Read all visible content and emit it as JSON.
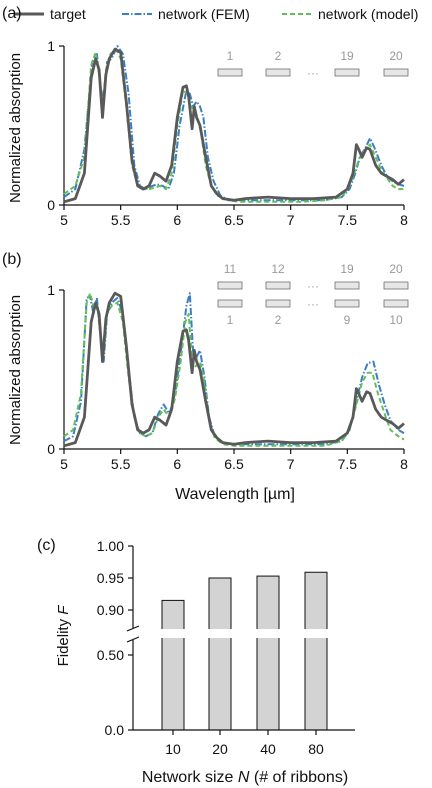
{
  "colors": {
    "target": "#595959",
    "fem": "#3a7fc4",
    "model": "#62bf58",
    "ribbon_fill": "#e6e6e6",
    "ribbon_stroke": "#6f6f6f",
    "ribbon_label": "#9a9a9a",
    "bar_fill": "#d3d3d3"
  },
  "legend": [
    {
      "key": "target",
      "label": "target",
      "dash": ""
    },
    {
      "key": "fem",
      "label": "network (FEM)",
      "dash": "7,2,1.5,2"
    },
    {
      "key": "model",
      "label": "network (model)",
      "dash": "5,3"
    }
  ],
  "shared": {
    "ylabel": "Normalized absorption",
    "xlabel": "Wavelength [µm]",
    "ellipsis": "···"
  },
  "panels": {
    "a": {
      "label": "(a)",
      "ribbon_rows": [
        {
          "top": [
            "1",
            "2",
            "19",
            "20"
          ],
          "bottom": null
        }
      ]
    },
    "b": {
      "label": "(b)",
      "ribbon_rows": [
        {
          "top": [
            "11",
            "12",
            "19",
            "20"
          ],
          "bottom": [
            "1",
            "2",
            "9",
            "10"
          ]
        }
      ]
    },
    "c": {
      "label": "(c)",
      "ylabel_prefix": "Fidelity ",
      "ylabel_var": "F",
      "xlabel_prefix": "Network size ",
      "xlabel_var": "N",
      "xlabel_suffix": " (# of ribbons)"
    }
  },
  "chart_data": [
    {
      "type": "line",
      "panel": "a",
      "xlim": [
        5,
        8
      ],
      "ylim": [
        0,
        1
      ],
      "xticks": [
        "5",
        "5.5",
        "6",
        "6.5",
        "7",
        "7.5",
        "8"
      ],
      "yticks": [
        "0",
        "1"
      ],
      "xlabel": "",
      "ylabel": "Normalized absorption",
      "series": [
        {
          "name": "target",
          "x": [
            5.0,
            5.1,
            5.18,
            5.24,
            5.28,
            5.31,
            5.34,
            5.37,
            5.4,
            5.45,
            5.5,
            5.55,
            5.6,
            5.65,
            5.7,
            5.75,
            5.8,
            5.85,
            5.9,
            5.95,
            6.0,
            6.05,
            6.08,
            6.1,
            6.13,
            6.15,
            6.17,
            6.2,
            6.25,
            6.3,
            6.35,
            6.4,
            6.5,
            6.6,
            6.8,
            7.0,
            7.2,
            7.4,
            7.5,
            7.55,
            7.58,
            7.6,
            7.63,
            7.67,
            7.7,
            7.75,
            7.8,
            7.9,
            7.95,
            8.0
          ],
          "y": [
            0.02,
            0.04,
            0.2,
            0.8,
            0.92,
            0.85,
            0.55,
            0.82,
            0.92,
            0.98,
            0.96,
            0.65,
            0.28,
            0.12,
            0.1,
            0.12,
            0.2,
            0.18,
            0.15,
            0.25,
            0.55,
            0.74,
            0.75,
            0.68,
            0.48,
            0.62,
            0.55,
            0.5,
            0.3,
            0.12,
            0.07,
            0.04,
            0.03,
            0.04,
            0.05,
            0.04,
            0.04,
            0.05,
            0.1,
            0.2,
            0.38,
            0.35,
            0.3,
            0.36,
            0.35,
            0.25,
            0.2,
            0.16,
            0.13,
            0.16
          ]
        },
        {
          "name": "network (FEM)",
          "x": [
            5.0,
            5.1,
            5.18,
            5.25,
            5.29,
            5.32,
            5.35,
            5.38,
            5.42,
            5.47,
            5.52,
            5.57,
            5.62,
            5.67,
            5.72,
            5.78,
            5.82,
            5.87,
            5.92,
            5.97,
            6.02,
            6.08,
            6.11,
            6.14,
            6.17,
            6.2,
            6.23,
            6.27,
            6.32,
            6.38,
            6.45,
            6.55,
            6.7,
            6.9,
            7.1,
            7.3,
            7.45,
            7.52,
            7.57,
            7.61,
            7.66,
            7.7,
            7.74,
            7.8,
            7.85,
            7.9,
            7.95,
            8.0
          ],
          "y": [
            0.05,
            0.1,
            0.35,
            0.9,
            0.95,
            0.75,
            0.65,
            0.9,
            0.92,
            1.0,
            0.95,
            0.7,
            0.25,
            0.12,
            0.1,
            0.12,
            0.13,
            0.12,
            0.1,
            0.2,
            0.5,
            0.72,
            0.7,
            0.62,
            0.65,
            0.62,
            0.55,
            0.3,
            0.15,
            0.06,
            0.03,
            0.03,
            0.03,
            0.03,
            0.03,
            0.03,
            0.05,
            0.1,
            0.2,
            0.3,
            0.36,
            0.42,
            0.36,
            0.25,
            0.18,
            0.15,
            0.13,
            0.12
          ]
        },
        {
          "name": "network (model)",
          "x": [
            5.0,
            5.1,
            5.18,
            5.24,
            5.28,
            5.31,
            5.34,
            5.37,
            5.41,
            5.46,
            5.5,
            5.55,
            5.6,
            5.65,
            5.7,
            5.75,
            5.8,
            5.85,
            5.9,
            5.95,
            6.0,
            6.05,
            6.09,
            6.12,
            6.15,
            6.18,
            6.21,
            6.25,
            6.3,
            6.35,
            6.45,
            6.55,
            6.7,
            6.9,
            7.1,
            7.3,
            7.45,
            7.52,
            7.57,
            7.61,
            7.66,
            7.7,
            7.75,
            7.8,
            7.85,
            7.9,
            7.95,
            8.0
          ],
          "y": [
            0.07,
            0.12,
            0.3,
            0.88,
            0.96,
            0.82,
            0.62,
            0.85,
            0.95,
            0.98,
            0.92,
            0.62,
            0.25,
            0.12,
            0.1,
            0.1,
            0.11,
            0.12,
            0.1,
            0.2,
            0.5,
            0.72,
            0.7,
            0.62,
            0.6,
            0.55,
            0.45,
            0.25,
            0.12,
            0.06,
            0.03,
            0.02,
            0.02,
            0.02,
            0.02,
            0.03,
            0.05,
            0.12,
            0.22,
            0.3,
            0.35,
            0.38,
            0.3,
            0.22,
            0.17,
            0.12,
            0.1,
            0.1
          ]
        }
      ]
    },
    {
      "type": "line",
      "panel": "b",
      "xlim": [
        5,
        8
      ],
      "ylim": [
        0,
        1
      ],
      "xticks": [
        "5",
        "5.5",
        "6",
        "6.5",
        "7",
        "7.5",
        "8"
      ],
      "yticks": [
        "0",
        "1"
      ],
      "xlabel": "Wavelength [µm]",
      "ylabel": "Normalized absorption",
      "series": [
        {
          "name": "target",
          "x": [
            5.0,
            5.1,
            5.18,
            5.24,
            5.28,
            5.31,
            5.34,
            5.37,
            5.4,
            5.45,
            5.5,
            5.55,
            5.6,
            5.65,
            5.7,
            5.75,
            5.8,
            5.85,
            5.9,
            5.95,
            6.0,
            6.05,
            6.08,
            6.1,
            6.13,
            6.15,
            6.17,
            6.2,
            6.25,
            6.3,
            6.35,
            6.4,
            6.5,
            6.6,
            6.8,
            7.0,
            7.2,
            7.4,
            7.5,
            7.55,
            7.58,
            7.6,
            7.63,
            7.67,
            7.7,
            7.75,
            7.8,
            7.9,
            7.95,
            8.0
          ],
          "y": [
            0.02,
            0.04,
            0.2,
            0.8,
            0.92,
            0.85,
            0.55,
            0.82,
            0.92,
            0.98,
            0.96,
            0.65,
            0.28,
            0.12,
            0.1,
            0.12,
            0.2,
            0.18,
            0.15,
            0.25,
            0.55,
            0.74,
            0.75,
            0.68,
            0.48,
            0.62,
            0.55,
            0.5,
            0.3,
            0.12,
            0.07,
            0.04,
            0.03,
            0.04,
            0.05,
            0.04,
            0.04,
            0.05,
            0.1,
            0.2,
            0.38,
            0.35,
            0.3,
            0.36,
            0.35,
            0.25,
            0.2,
            0.16,
            0.13,
            0.16
          ]
        },
        {
          "name": "network (FEM)",
          "x": [
            5.0,
            5.08,
            5.15,
            5.2,
            5.23,
            5.26,
            5.29,
            5.32,
            5.35,
            5.38,
            5.42,
            5.47,
            5.52,
            5.57,
            5.62,
            5.67,
            5.72,
            5.78,
            5.83,
            5.88,
            5.93,
            5.98,
            6.03,
            6.08,
            6.11,
            6.14,
            6.17,
            6.2,
            6.24,
            6.28,
            6.33,
            6.4,
            6.5,
            6.7,
            6.9,
            7.1,
            7.3,
            7.45,
            7.52,
            7.58,
            7.63,
            7.68,
            7.73,
            7.78,
            7.83,
            7.88,
            7.95,
            8.0
          ],
          "y": [
            0.05,
            0.08,
            0.3,
            0.95,
            0.96,
            0.85,
            0.95,
            0.72,
            0.55,
            0.85,
            0.92,
            0.95,
            0.85,
            0.5,
            0.2,
            0.1,
            0.08,
            0.1,
            0.22,
            0.28,
            0.22,
            0.35,
            0.6,
            0.9,
            0.98,
            0.6,
            0.58,
            0.62,
            0.45,
            0.2,
            0.08,
            0.04,
            0.03,
            0.03,
            0.03,
            0.03,
            0.03,
            0.05,
            0.12,
            0.3,
            0.45,
            0.54,
            0.55,
            0.4,
            0.28,
            0.18,
            0.12,
            0.1
          ]
        },
        {
          "name": "network (model)",
          "x": [
            5.0,
            5.08,
            5.15,
            5.2,
            5.23,
            5.26,
            5.29,
            5.32,
            5.35,
            5.38,
            5.42,
            5.47,
            5.52,
            5.57,
            5.62,
            5.67,
            5.72,
            5.78,
            5.83,
            5.88,
            5.93,
            5.98,
            6.03,
            6.07,
            6.1,
            6.13,
            6.16,
            6.2,
            6.24,
            6.28,
            6.33,
            6.4,
            6.5,
            6.7,
            6.9,
            7.1,
            7.3,
            7.45,
            7.52,
            7.58,
            7.63,
            7.68,
            7.72,
            7.77,
            7.83,
            7.88,
            7.95,
            8.0
          ],
          "y": [
            0.08,
            0.12,
            0.35,
            0.92,
            0.98,
            0.9,
            0.92,
            0.72,
            0.6,
            0.85,
            0.9,
            0.92,
            0.8,
            0.45,
            0.2,
            0.1,
            0.08,
            0.1,
            0.2,
            0.25,
            0.2,
            0.32,
            0.55,
            0.8,
            0.85,
            0.55,
            0.52,
            0.55,
            0.42,
            0.18,
            0.07,
            0.03,
            0.02,
            0.02,
            0.02,
            0.02,
            0.02,
            0.05,
            0.12,
            0.28,
            0.42,
            0.48,
            0.48,
            0.35,
            0.22,
            0.12,
            0.08,
            0.06
          ]
        }
      ]
    },
    {
      "type": "bar",
      "panel": "c",
      "categories": [
        "10",
        "20",
        "40",
        "80"
      ],
      "values": [
        0.915,
        0.95,
        0.953,
        0.959
      ],
      "ylim": [
        0,
        1.0
      ],
      "axis_break": [
        0.5,
        0.9
      ],
      "yticks_upper": [
        "0.90",
        "0.95",
        "1.00"
      ],
      "yticks_lower": [
        "0.0",
        "0.50"
      ],
      "xlabel": "Network size N (# of ribbons)",
      "ylabel": "Fidelity F"
    }
  ]
}
